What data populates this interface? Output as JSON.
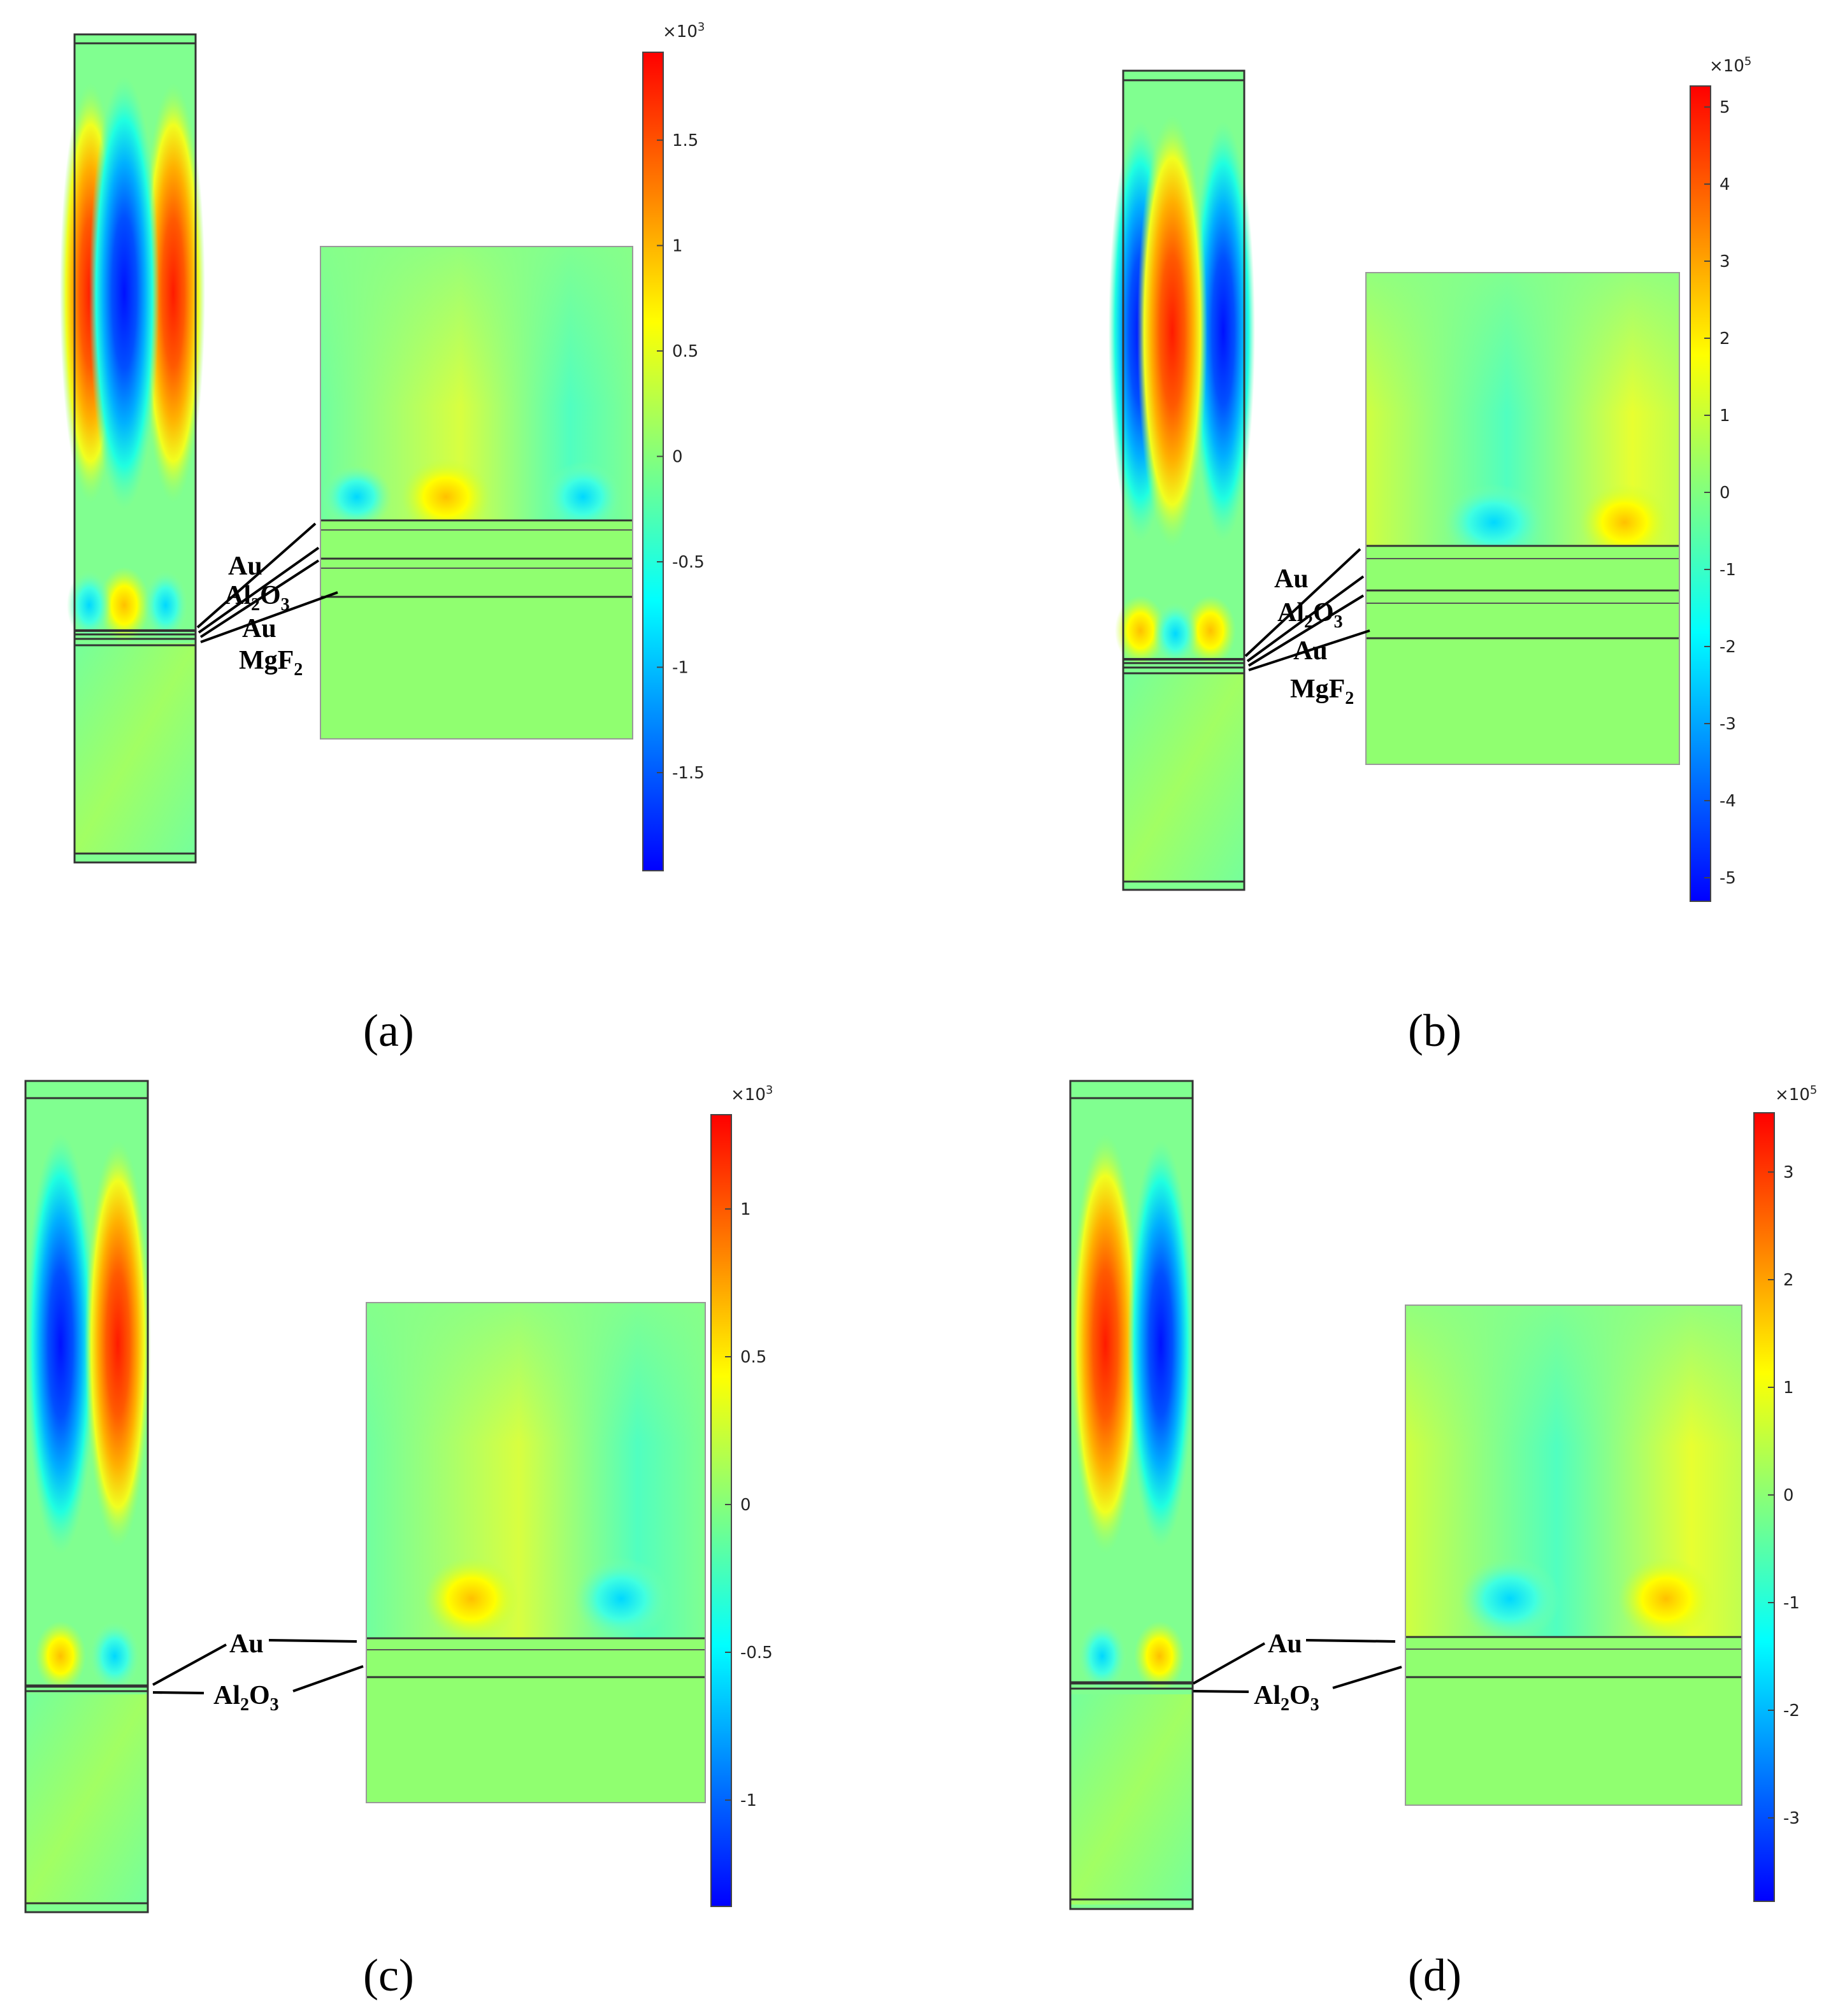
{
  "colormap": [
    "#0000ff",
    "#0080ff",
    "#00ffff",
    "#80ff80",
    "#ffff00",
    "#ff8000",
    "#ff0000"
  ],
  "panels": [
    {
      "id": "a",
      "label": "(a)",
      "layer_labels": [
        "Au",
        "Al",
        "2",
        "O",
        "3",
        "Au",
        "MgF",
        "2"
      ],
      "colorbar": {
        "exponent_base": "×10",
        "exponent_power": "3",
        "ticks": [
          "1.5",
          "1",
          "0.5",
          "0",
          "-0.5",
          "-1",
          "-1.5"
        ]
      }
    },
    {
      "id": "b",
      "label": "(b)",
      "layer_labels": [
        "Au",
        "Al",
        "2",
        "O",
        "3",
        "Au",
        "MgF",
        "2"
      ],
      "colorbar": {
        "exponent_base": "×10",
        "exponent_power": "5",
        "ticks": [
          "5",
          "4",
          "3",
          "2",
          "1",
          "0",
          "-1",
          "-2",
          "-3",
          "-4",
          "-5"
        ]
      }
    },
    {
      "id": "c",
      "label": "(c)",
      "layer_labels": [
        "Au",
        "Al",
        "2",
        "O",
        "3"
      ],
      "colorbar": {
        "exponent_base": "×10",
        "exponent_power": "3",
        "ticks": [
          "1",
          "0.5",
          "0",
          "-0.5",
          "-1"
        ]
      }
    },
    {
      "id": "d",
      "label": "(d)",
      "layer_labels": [
        "Au",
        "Al",
        "2",
        "O",
        "3"
      ],
      "colorbar": {
        "exponent_base": "×10",
        "exponent_power": "5",
        "ticks": [
          "3",
          "2",
          "1",
          "0",
          "-1",
          "-2",
          "-3"
        ]
      }
    }
  ]
}
